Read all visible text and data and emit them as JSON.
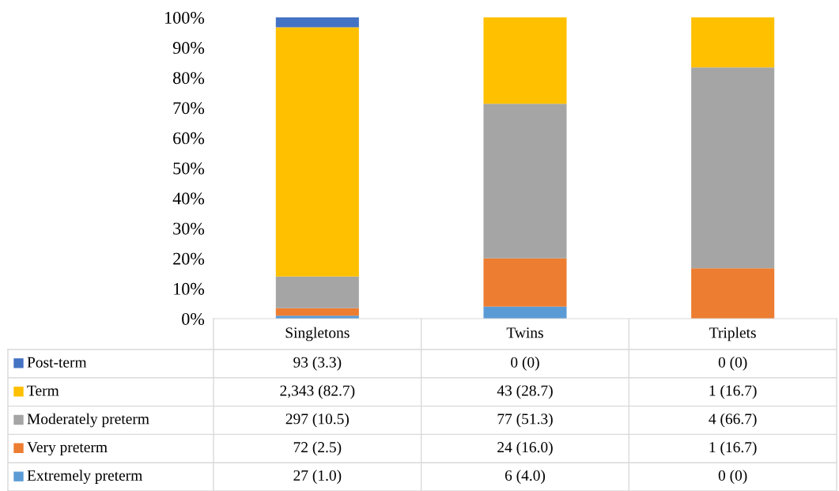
{
  "chart_data": {
    "type": "bar",
    "stacked": true,
    "categories": [
      "Singletons",
      "Twins",
      "Triplets"
    ],
    "ylim": [
      0,
      100
    ],
    "yticks": [
      {
        "value": 0,
        "label": "0%"
      },
      {
        "value": 10,
        "label": "10%"
      },
      {
        "value": 20,
        "label": "20%"
      },
      {
        "value": 30,
        "label": "30%"
      },
      {
        "value": 40,
        "label": "40%"
      },
      {
        "value": 50,
        "label": "50%"
      },
      {
        "value": 60,
        "label": "60%"
      },
      {
        "value": 70,
        "label": "70%"
      },
      {
        "value": 80,
        "label": "80%"
      },
      {
        "value": 90,
        "label": "90%"
      },
      {
        "value": 100,
        "label": "100%"
      }
    ],
    "grid": false,
    "legend": "bottom",
    "series": [
      {
        "name": "Extremely preterm",
        "color": "#5b9bd5",
        "values": [
          1.0,
          4.0,
          0
        ],
        "value_labels": [
          "27 (1.0)",
          "6 (4.0)",
          "0 (0)"
        ]
      },
      {
        "name": "Very preterm",
        "color": "#ed7d31",
        "values": [
          2.5,
          16.0,
          16.7
        ],
        "value_labels": [
          "72 (2.5)",
          "24 (16.0)",
          "1 (16.7)"
        ]
      },
      {
        "name": "Moderately preterm",
        "color": "#a5a5a5",
        "values": [
          10.5,
          51.3,
          66.7
        ],
        "value_labels": [
          "297 (10.5)",
          "77 (51.3)",
          "4 (66.7)"
        ]
      },
      {
        "name": "Term",
        "color": "#ffc000",
        "values": [
          82.7,
          28.7,
          16.7
        ],
        "value_labels": [
          "2,343 (82.7)",
          "43 (28.7)",
          "1 (16.7)"
        ]
      },
      {
        "name": "Post-term",
        "color": "#4472c4",
        "values": [
          3.3,
          0,
          0
        ],
        "value_labels": [
          "93 (3.3)",
          "0 (0)",
          "0 (0)"
        ]
      }
    ]
  }
}
